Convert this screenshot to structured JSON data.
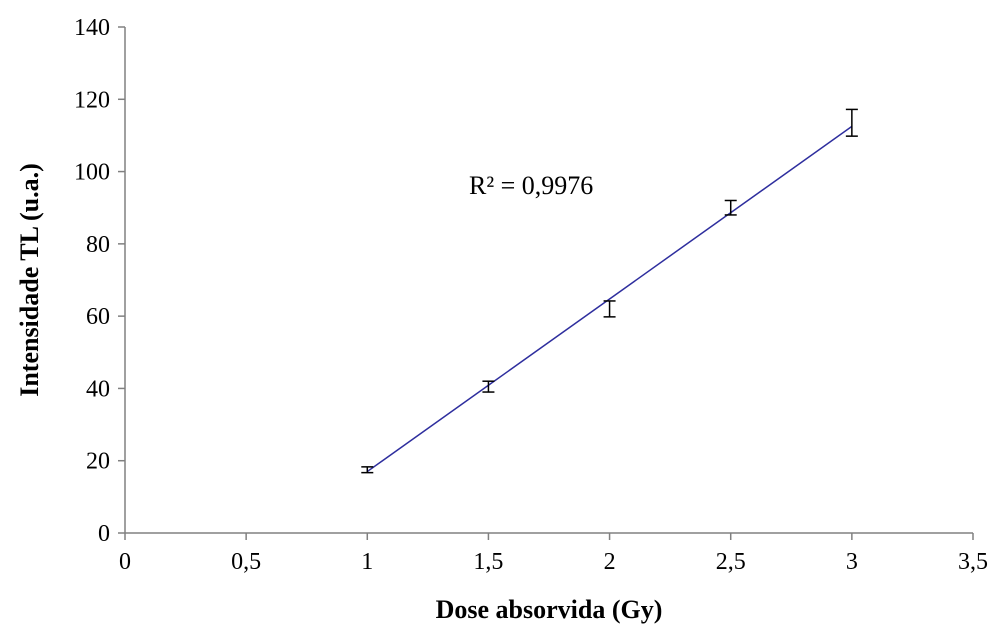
{
  "chart_data": {
    "type": "scatter",
    "title": "",
    "xlabel": "Dose absorvida (Gy)",
    "ylabel": "Intensidade TL (u.a.)",
    "xlim": [
      0,
      3.5
    ],
    "ylim": [
      0,
      140
    ],
    "x_ticks": [
      0,
      0.5,
      1,
      1.5,
      2,
      2.5,
      3,
      3.5
    ],
    "x_tick_labels": [
      "0",
      "0,5",
      "1",
      "1,5",
      "2",
      "2,5",
      "3",
      "3,5"
    ],
    "y_ticks": [
      0,
      20,
      40,
      60,
      80,
      100,
      120,
      140
    ],
    "y_tick_labels": [
      "0",
      "20",
      "40",
      "60",
      "80",
      "100",
      "120",
      "140"
    ],
    "grid": false,
    "legend": "none",
    "series": [
      {
        "x": [
          1,
          1.5,
          2,
          2.5,
          3
        ],
        "y": [
          17.5,
          40.5,
          62,
          90,
          113.5
        ],
        "error": [
          0.8,
          1.5,
          2.2,
          2.0,
          3.7
        ],
        "marker": "error-bar"
      }
    ],
    "trendline": {
      "type": "linear",
      "x_range": [
        1,
        3
      ],
      "y_start": 17,
      "y_end": 112.5,
      "color": "#2e2e9e"
    },
    "annotation": "R² = 0,9976",
    "colors": {
      "axis": "#808080",
      "trendline": "#2e2e9e",
      "error_bars": "#000000"
    }
  }
}
